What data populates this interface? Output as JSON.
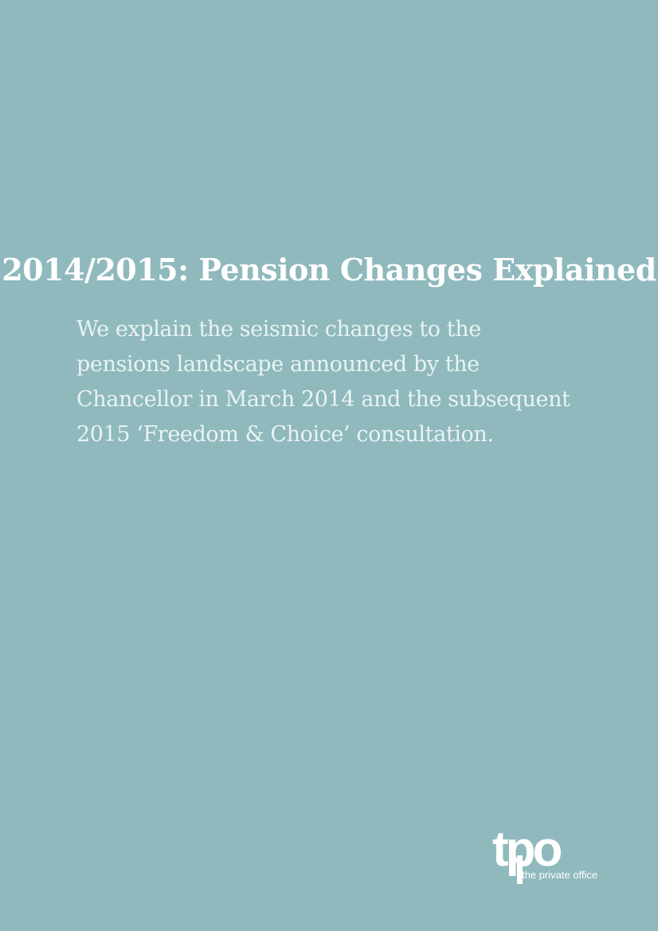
{
  "document": {
    "title": "2014/2015: Pension Changes Explained",
    "intro_lines": [
      "We explain the seismic changes to the",
      "pensions landscape announced by the",
      "Chancellor in March 2014 and the subsequent",
      "2015 ‘Freedom & Choice’ consultation."
    ]
  },
  "brand": {
    "mark": "tpo",
    "tagline": "the private office"
  },
  "colors": {
    "background": "#8fb9bd",
    "title": "#ffffff",
    "intro": "#eaf3f3"
  }
}
